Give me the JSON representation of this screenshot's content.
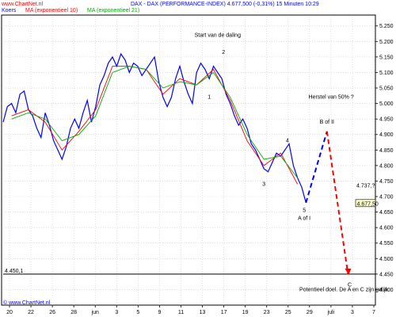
{
  "header": {
    "site": "www.ChartNet.nl",
    "title": "DAX - DAX (PERFORMANCE-INDEX)   4.677,500 (-0,31%)   15 Minuten  10:29",
    "legend": [
      {
        "label": "Koers",
        "color": "#0000ff"
      },
      {
        "label": "MA (exponentieel 10)",
        "color": "#ff0000"
      },
      {
        "label": "MA (exponentieel 21)",
        "color": "#00aa00"
      }
    ]
  },
  "footer": {
    "copyright": "© www.ChartNet.nl"
  },
  "colors": {
    "price": "#0000ff",
    "ma10": "#ff0000",
    "ma21": "#00aa00",
    "projection_up": "#0000ff",
    "projection_down": "#ff0000",
    "grid": "#c8c8c8",
    "background": "#ffffff",
    "last_price_box": "#ffffcc"
  },
  "chart_data": {
    "type": "line",
    "title": "DAX - DAX (PERFORMANCE-INDEX)",
    "xlabel": "",
    "ylabel": "",
    "ylim": [
      4350,
      5280
    ],
    "yticks": [
      4400,
      4450,
      4500,
      4550,
      4600,
      4650,
      4700,
      4750,
      4800,
      4850,
      4900,
      4950,
      5000,
      5050,
      5100,
      5150,
      5200,
      5250
    ],
    "ytick_labels": [
      "4.400",
      "4.450",
      "4.500",
      "4.550",
      "4.600",
      "4.650",
      "4.700",
      "4.750",
      "4.800",
      "4.850",
      "4.900",
      "4.950",
      "5.000",
      "5.050",
      "5.100",
      "5.150",
      "5.200",
      "5.250"
    ],
    "xlim": [
      0,
      42
    ],
    "xticks": [
      0,
      3,
      6,
      9,
      12,
      15,
      18,
      21,
      24,
      27,
      30,
      33,
      36,
      39,
      42
    ],
    "xtick_labels": [
      "20",
      "22",
      "26",
      "28",
      "jun",
      "3",
      "5",
      "9",
      "11",
      "13",
      "17",
      "19",
      "23",
      "25",
      "29"
    ],
    "xtick_labels_tail": [
      "juli",
      "3",
      "7"
    ],
    "grid": true,
    "series": [
      {
        "name": "Koers",
        "x": [
          0,
          0.5,
          1,
          1.5,
          2,
          2.5,
          3,
          3.5,
          4,
          4.5,
          5,
          5.5,
          6,
          6.5,
          7,
          7.5,
          8,
          8.5,
          9,
          9.5,
          10,
          10.5,
          11,
          11.5,
          12,
          12.5,
          13,
          13.5,
          14,
          14.5,
          15,
          15.5,
          16,
          16.5,
          17,
          17.5,
          18,
          18.5,
          19,
          19.5,
          20,
          20.5,
          21,
          21.5,
          22,
          22.5,
          23,
          23.5,
          24,
          24.5,
          25,
          25.5,
          26,
          26.5,
          27,
          27.5,
          28,
          28.5,
          29,
          29.5,
          30,
          30.5,
          31,
          31.5,
          32,
          32.5,
          33,
          33.5,
          34,
          34.5,
          35,
          35.5,
          36
        ],
        "values": [
          4940,
          4990,
          5000,
          4970,
          5030,
          5040,
          4980,
          4960,
          4920,
          4890,
          4970,
          4930,
          4880,
          4850,
          4820,
          4860,
          4920,
          4950,
          4920,
          4970,
          5010,
          4940,
          4990,
          5060,
          5090,
          5130,
          5150,
          5120,
          5160,
          5140,
          5100,
          5130,
          5120,
          5090,
          5110,
          5130,
          5150,
          5070,
          5020,
          4990,
          5020,
          5080,
          5120,
          5070,
          5030,
          5000,
          5100,
          5130,
          5110,
          5080,
          5120,
          5100,
          5080,
          5030,
          5000,
          4960,
          4930,
          4950,
          4920,
          4870,
          4850,
          4820,
          4790,
          4780,
          4810,
          4840,
          4830,
          4850,
          4870,
          4800,
          4760,
          4730,
          4680
        ]
      },
      {
        "name": "MA (exponentieel 10)",
        "x": [
          1,
          3,
          5,
          7,
          9,
          11,
          13,
          15,
          17,
          19,
          21,
          23,
          25,
          27,
          29,
          31,
          33,
          35
        ],
        "values": [
          4960,
          4980,
          4940,
          4850,
          4910,
          4980,
          5120,
          5120,
          5110,
          5030,
          5080,
          5060,
          5110,
          5010,
          4880,
          4800,
          4840,
          4740
        ]
      },
      {
        "name": "MA (exponentieel 21)",
        "x": [
          1,
          3,
          5,
          7,
          9,
          11,
          13,
          15,
          17,
          19,
          21,
          23,
          25,
          27,
          29,
          31,
          33,
          35
        ],
        "values": [
          4950,
          4970,
          4950,
          4880,
          4900,
          4960,
          5100,
          5120,
          5110,
          5050,
          5070,
          5060,
          5100,
          5020,
          4900,
          4820,
          4830,
          4760
        ]
      }
    ],
    "projections": [
      {
        "from": [
          36,
          4680
        ],
        "to": [
          38.5,
          4910
        ],
        "style": "dashed",
        "color": "#0000ff"
      },
      {
        "from": [
          38.5,
          4910
        ],
        "to": [
          41,
          4450
        ],
        "style": "dashed",
        "color": "#ff0000"
      }
    ],
    "hline": {
      "value": 4450,
      "label": "4.450,1"
    },
    "last_price": {
      "label": "4.677,50",
      "value": 4677.5
    },
    "secondary_price": {
      "label": "4.737,?",
      "value": 4736
    },
    "annotations": [
      {
        "text": "Start van de daling",
        "x": 25.5,
        "y": 5215
      },
      {
        "text": "2",
        "x": 26.2,
        "y": 5160
      },
      {
        "text": "1",
        "x": 24.5,
        "y": 5015
      },
      {
        "text": "Herstel van 50% ?",
        "x": 39,
        "y": 5015
      },
      {
        "text": "B of II",
        "x": 38.5,
        "y": 4935
      },
      {
        "text": "4",
        "x": 33.8,
        "y": 4875
      },
      {
        "text": "3",
        "x": 31,
        "y": 4735
      },
      {
        "text": "5",
        "x": 35.8,
        "y": 4650
      },
      {
        "text": "A of I",
        "x": 35.8,
        "y": 4625
      },
      {
        "text": "C",
        "x": 41.2,
        "y": 4410
      },
      {
        "text": "Potentieel doel. De A en C zijn gelijk",
        "x": 40.5,
        "y": 4395
      }
    ]
  }
}
